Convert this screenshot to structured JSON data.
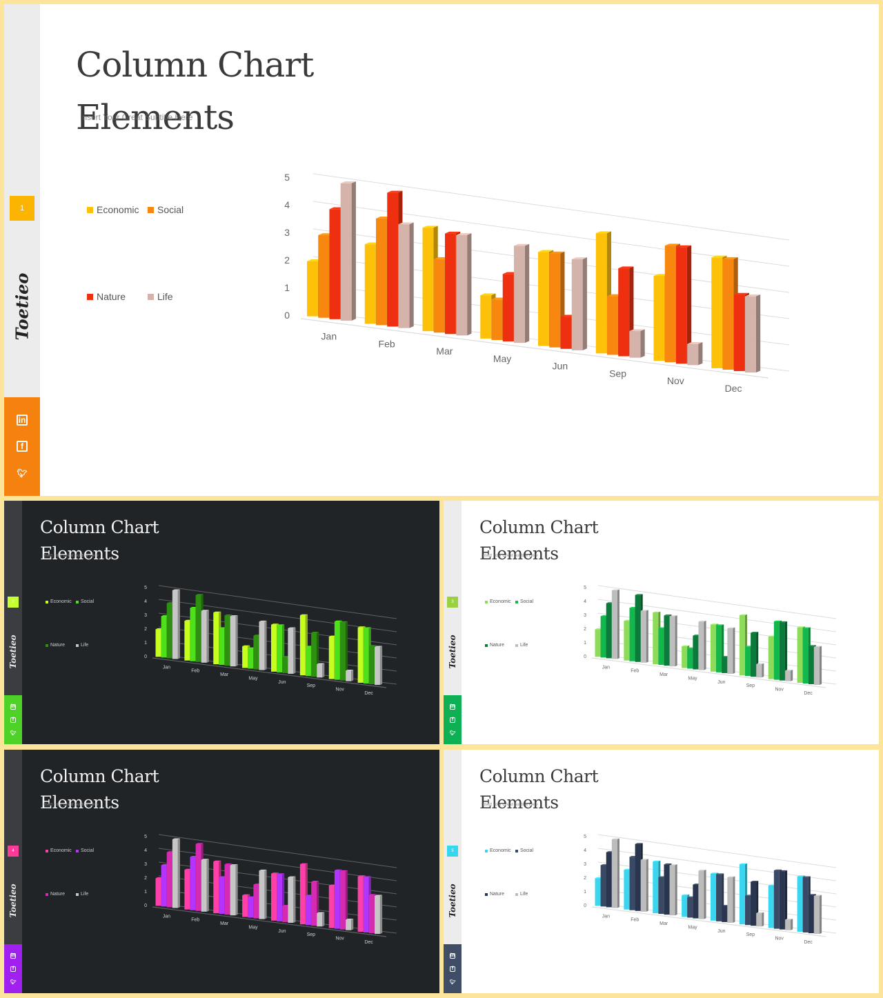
{
  "title_line1": "Column Chart",
  "title_line2": "Elements",
  "subtitle": "Insert Your Great Subtitle Here",
  "logo": "Toetieo",
  "social_icons": [
    "linkedin-icon",
    "facebook-icon",
    "twitter-icon"
  ],
  "chart_data": {
    "type": "bar",
    "categories": [
      "Jan",
      "Feb",
      "Mar",
      "May",
      "Jun",
      "Sep",
      "Nov",
      "Dec"
    ],
    "series": [
      {
        "name": "Economic",
        "values": [
          2.0,
          2.9,
          3.8,
          1.6,
          3.5,
          4.5,
          3.2,
          4.2
        ]
      },
      {
        "name": "Social",
        "values": [
          3.0,
          3.9,
          2.7,
          1.5,
          3.5,
          2.2,
          4.4,
          4.2
        ]
      },
      {
        "name": "Nature",
        "values": [
          4.0,
          4.9,
          3.7,
          2.5,
          1.2,
          3.3,
          4.4,
          2.9
        ]
      },
      {
        "name": "Life",
        "values": [
          5.0,
          3.8,
          3.7,
          3.6,
          3.4,
          1.0,
          0.8,
          2.9
        ]
      }
    ],
    "yticks": [
      0,
      1,
      2,
      3,
      4,
      5
    ],
    "ylim": [
      0,
      5
    ],
    "legend": "left",
    "grid": true,
    "style": "3d-column"
  },
  "slides": [
    {
      "number": "1",
      "theme": "light",
      "accent": "#fbb400",
      "social_bg": "#f5820f",
      "series_colors": [
        "#fec10a",
        "#f7870f",
        "#ee3010",
        "#d4b3aa"
      ]
    },
    {
      "number": "2",
      "theme": "dark",
      "accent": "#c5ff30",
      "social_bg": "#4fd228",
      "series_colors": [
        "#c6ff1f",
        "#4fe01c",
        "#2e8f10",
        "#c6c6c6"
      ]
    },
    {
      "number": "3",
      "theme": "light",
      "accent": "#9ad142",
      "social_bg": "#0db052",
      "series_colors": [
        "#8ddb58",
        "#12b84c",
        "#0b7a3a",
        "#bebebe"
      ]
    },
    {
      "number": "4",
      "theme": "dark",
      "accent": "#ff3b9a",
      "social_bg": "#a020f0",
      "series_colors": [
        "#ff40a8",
        "#b334ff",
        "#d52bb0",
        "#c6c6c6"
      ]
    },
    {
      "number": "5",
      "theme": "light",
      "accent": "#35d7f0",
      "social_bg": "#3f4d66",
      "series_colors": [
        "#3ad6f0",
        "#3a4a66",
        "#2a3650",
        "#bcbcbc"
      ]
    }
  ]
}
